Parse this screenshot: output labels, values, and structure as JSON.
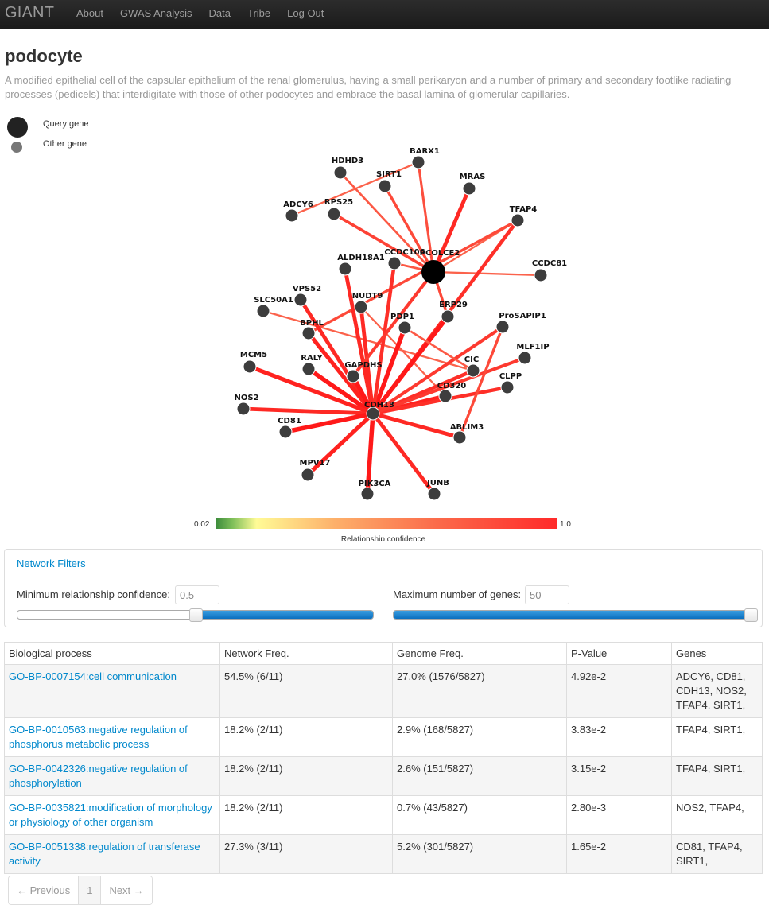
{
  "navbar": {
    "brand": "GIANT",
    "items": [
      "About",
      "GWAS Analysis",
      "Data",
      "Tribe",
      "Log Out"
    ]
  },
  "header": {
    "title": "podocyte",
    "description": "A modified epithelial cell of the capsular epithelium of the renal glomerulus, having a small perikaryon and a number of primary and secondary footlike radiating processes (pedicels) that interdigitate with those of other podocytes and embrace the basal lamina of glomerular capillaries."
  },
  "legend": {
    "query_label": "Query gene",
    "other_label": "Other gene"
  },
  "network": {
    "query_genes": [
      "PCOLCE2"
    ],
    "nodes": [
      "BARX1",
      "HDHD3",
      "SIRT1",
      "MRAS",
      "ADCY6",
      "RPS25",
      "TFAP4",
      "CCDC106",
      "PCOLCE2",
      "ALDH18A1",
      "CCDC81",
      "VPS52",
      "SLC50A1",
      "NUDT9",
      "ERP29",
      "BPHL",
      "PDP1",
      "ProSAPIP1",
      "MCM5",
      "RALY",
      "GAPDHS",
      "CIC",
      "MLF1IP",
      "CLPP",
      "CD320",
      "NOS2",
      "CDH13",
      "CD81",
      "ABLIM3",
      "MPV17",
      "PIK3CA",
      "JUNB"
    ],
    "edges": [
      [
        "BARX1",
        "PCOLCE2",
        0.78
      ],
      [
        "BARX1",
        "ADCY6",
        0.72
      ],
      [
        "SIRT1",
        "PCOLCE2",
        0.8
      ],
      [
        "MRAS",
        "PCOLCE2",
        0.9
      ],
      [
        "RPS25",
        "PCOLCE2",
        0.82
      ],
      [
        "HDHD3",
        "PCOLCE2",
        0.75
      ],
      [
        "TFAP4",
        "PCOLCE2",
        0.72
      ],
      [
        "CCDC81",
        "PCOLCE2",
        0.72
      ],
      [
        "CCDC106",
        "PCOLCE2",
        0.75
      ],
      [
        "SLC50A1",
        "CIC",
        0.72
      ],
      [
        "NUDT9",
        "CD320",
        0.72
      ],
      [
        "TFAP4",
        "CDH13",
        0.88
      ],
      [
        "TFAP4",
        "BPHL",
        0.8
      ],
      [
        "ERP29",
        "CDH13",
        0.95
      ],
      [
        "ERP29",
        "PCOLCE2",
        0.8
      ],
      [
        "PDP1",
        "CDH13",
        0.95
      ],
      [
        "ALDH18A1",
        "CDH13",
        0.9
      ],
      [
        "CCDC106",
        "CDH13",
        0.88
      ],
      [
        "VPS52",
        "CDH13",
        0.9
      ],
      [
        "BPHL",
        "CDH13",
        0.92
      ],
      [
        "RALY",
        "CDH13",
        0.95
      ],
      [
        "GAPDHS",
        "CDH13",
        0.95
      ],
      [
        "MCM5",
        "CDH13",
        0.92
      ],
      [
        "NOS2",
        "CDH13",
        0.9
      ],
      [
        "CD81",
        "CDH13",
        0.95
      ],
      [
        "MPV17",
        "CDH13",
        0.92
      ],
      [
        "PIK3CA",
        "CDH13",
        0.95
      ],
      [
        "JUNB",
        "CDH13",
        0.9
      ],
      [
        "ABLIM3",
        "CDH13",
        0.9
      ],
      [
        "CD320",
        "CDH13",
        0.92
      ],
      [
        "CIC",
        "CDH13",
        0.88
      ],
      [
        "CLPP",
        "CDH13",
        0.88
      ],
      [
        "MLF1IP",
        "CDH13",
        0.85
      ],
      [
        "ProSAPIP1",
        "CDH13",
        0.85
      ],
      [
        "ProSAPIP1",
        "ABLIM3",
        0.8
      ],
      [
        "NUDT9",
        "CDH13",
        0.9
      ],
      [
        "PCOLCE2",
        "GAPDHS",
        0.85
      ],
      [
        "PDP1",
        "CIC",
        0.75
      ]
    ]
  },
  "scale": {
    "min": "0.02",
    "max": "1.0",
    "title": "Relationship confidence",
    "colors": [
      "#3a8a3a",
      "#fffb96",
      "#fb6a4a",
      "#ff2a2a"
    ]
  },
  "filters": {
    "heading": "Network Filters",
    "min_conf_label": "Minimum relationship confidence:",
    "min_conf_value": "0.5",
    "min_conf_fraction": 0.5,
    "max_genes_label": "Maximum number of genes:",
    "max_genes_value": "50",
    "max_genes_fraction": 1.0
  },
  "table": {
    "headers": [
      "Biological process",
      "Network Freq.",
      "Genome Freq.",
      "P-Value",
      "Genes"
    ],
    "rows": [
      {
        "process": "GO-BP-0007154:cell communication",
        "net": "54.5% (6/11)",
        "genome": "27.0% (1576/5827)",
        "pvalue": "4.92e-2",
        "genes": "ADCY6, CD81, CDH13, NOS2, TFAP4, SIRT1,"
      },
      {
        "process": "GO-BP-0010563:negative regulation of phosphorus metabolic process",
        "net": "18.2% (2/11)",
        "genome": "2.9% (168/5827)",
        "pvalue": "3.83e-2",
        "genes": "TFAP4, SIRT1,"
      },
      {
        "process": "GO-BP-0042326:negative regulation of phosphorylation",
        "net": "18.2% (2/11)",
        "genome": "2.6% (151/5827)",
        "pvalue": "3.15e-2",
        "genes": "TFAP4, SIRT1,"
      },
      {
        "process": "GO-BP-0035821:modification of morphology or physiology of other organism",
        "net": "18.2% (2/11)",
        "genome": "0.7% (43/5827)",
        "pvalue": "2.80e-3",
        "genes": "NOS2, TFAP4,"
      },
      {
        "process": "GO-BP-0051338:regulation of transferase activity",
        "net": "27.3% (3/11)",
        "genome": "5.2% (301/5827)",
        "pvalue": "1.65e-2",
        "genes": "CD81, TFAP4, SIRT1,"
      }
    ]
  },
  "pagination": {
    "prev": "← Previous",
    "page": "1",
    "next": "Next →"
  }
}
